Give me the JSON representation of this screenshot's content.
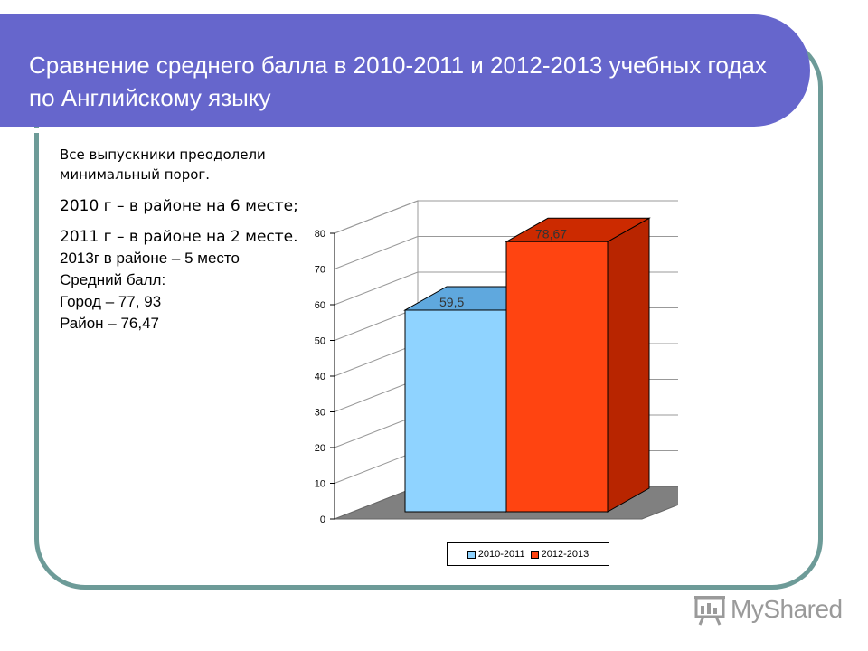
{
  "slide": {
    "title": "Сравнение среднего балла в 2010-2011 и 2012-2013 учебных годах по Английскому языку",
    "text_small": "Все выпускники преодолели минимальный порог.",
    "text_item_1": "2010 г – в районе на 6 месте;",
    "text_item_2": "2011 г – в районе на 2 месте.",
    "text_lines": [
      "2013г в районе – 5 место",
      "Средний балл:",
      "Город – 77, 93",
      "Район – 76,47"
    ]
  },
  "chart_data": {
    "type": "bar",
    "categories": [
      ""
    ],
    "series": [
      {
        "name": "2010-2011",
        "values": [
          59.5
        ],
        "label": "59,5",
        "color": "#8fd3ff"
      },
      {
        "name": "2012-2013",
        "values": [
          78.67
        ],
        "label": "78,67",
        "color": "#ff4411"
      }
    ],
    "ylim": [
      0,
      80
    ],
    "yticks": [
      0,
      10,
      20,
      30,
      40,
      50,
      60,
      70,
      80
    ],
    "grid": true,
    "legend": "bottom"
  },
  "logo": {
    "text": "MyShared",
    "icon": "presentation-board-icon",
    "color": "#9a9a9a"
  },
  "colors": {
    "title_bar": "#6666cc",
    "frame": "#6d9b98",
    "floor": "#808080"
  }
}
